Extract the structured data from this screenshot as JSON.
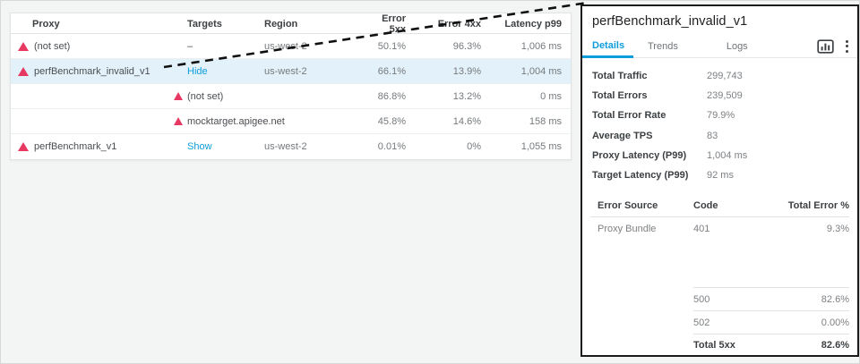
{
  "colors": {
    "accent_blue": "#0d9ddb",
    "alert_pink": "#e73862",
    "selected_row_bg": "#e3f1fa",
    "panel_border": "#1b1b1b",
    "background": "#f3f4f4"
  },
  "proxy_table": {
    "columns": [
      "Proxy",
      "Targets",
      "Region",
      "Error 5xx",
      "Error 4xx",
      "Latency p99"
    ],
    "rows": [
      {
        "proxy": "(not set)",
        "proxy_alert": true,
        "targets": "–",
        "targets_link": false,
        "targets_alert": false,
        "region": "us-west-2",
        "error_5xx": "50.1%",
        "error_4xx": "96.3%",
        "latency_p99": "1,006 ms",
        "selected": false
      },
      {
        "proxy": "perfBenchmark_invalid_v1",
        "proxy_alert": true,
        "targets": "Hide",
        "targets_link": true,
        "targets_alert": false,
        "region": "us-west-2",
        "error_5xx": "66.1%",
        "error_4xx": "13.9%",
        "latency_p99": "1,004 ms",
        "selected": true
      },
      {
        "proxy": "",
        "proxy_alert": false,
        "targets": "(not set)",
        "targets_link": false,
        "targets_alert": true,
        "region": "",
        "error_5xx": "86.8%",
        "error_4xx": "13.2%",
        "latency_p99": "0 ms",
        "selected": false
      },
      {
        "proxy": "",
        "proxy_alert": false,
        "targets": "mocktarget.apigee.net",
        "targets_link": false,
        "targets_alert": true,
        "region": "",
        "error_5xx": "45.8%",
        "error_4xx": "14.6%",
        "latency_p99": "158 ms",
        "selected": false
      },
      {
        "proxy": "perfBenchmark_v1",
        "proxy_alert": true,
        "targets": "Show",
        "targets_link": true,
        "targets_alert": false,
        "region": "us-west-2",
        "error_5xx": "0.01%",
        "error_4xx": "0%",
        "latency_p99": "1,055 ms",
        "selected": false
      }
    ]
  },
  "panel": {
    "title": "perfBenchmark_invalid_v1",
    "tabs": [
      {
        "label": "Details",
        "active": true
      },
      {
        "label": "Trends",
        "active": false
      },
      {
        "label": "Logs",
        "active": false
      }
    ],
    "actions": [
      {
        "icon": "bar-chart-icon"
      },
      {
        "icon": "kebab-menu-icon"
      }
    ],
    "metrics": [
      {
        "label": "Total Traffic",
        "value": "299,743"
      },
      {
        "label": "Total Errors",
        "value": "239,509"
      },
      {
        "label": "Total Error Rate",
        "value": "79.9%"
      },
      {
        "label": "Average TPS",
        "value": "83"
      },
      {
        "label": "Proxy Latency (P99)",
        "value": "1,004 ms"
      },
      {
        "label": "Target Latency (P99)",
        "value": "92 ms"
      }
    ],
    "error_table": {
      "columns": [
        "Error Source",
        "Code",
        "Total Error %"
      ],
      "rows": [
        {
          "source": "Proxy Bundle",
          "code": "401",
          "pct": "9.3%",
          "bold": false,
          "divider": false,
          "gap_after": true
        },
        {
          "source": "",
          "code": "500",
          "pct": "82.6%",
          "bold": false,
          "divider": true,
          "gap_after": false
        },
        {
          "source": "",
          "code": "502",
          "pct": "0.00%",
          "bold": false,
          "divider": true,
          "gap_after": false
        },
        {
          "source": "",
          "code": "Total 5xx",
          "pct": "82.6%",
          "bold": true,
          "divider": true,
          "gap_after": false
        }
      ]
    }
  }
}
